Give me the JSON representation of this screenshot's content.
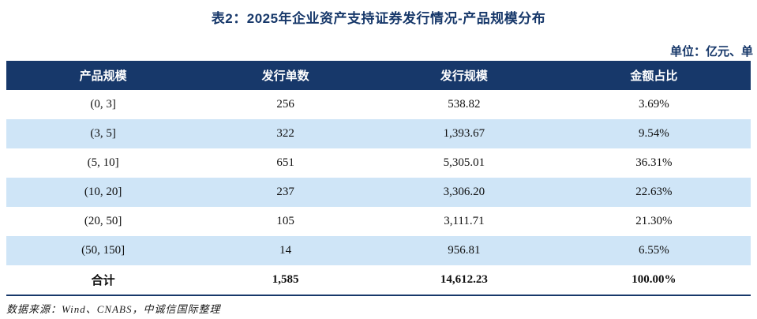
{
  "title": "表2：2025年企业资产支持证券发行情况-产品规模分布",
  "unit_label": "单位：亿元、单",
  "table": {
    "columns": [
      "产品规模",
      "发行单数",
      "发行规模",
      "金额占比"
    ],
    "rows": [
      {
        "scale": "(0, 3]",
        "count": "256",
        "volume": "538.82",
        "share": "3.69%"
      },
      {
        "scale": "(3, 5]",
        "count": "322",
        "volume": "1,393.67",
        "share": "9.54%"
      },
      {
        "scale": "(5, 10]",
        "count": "651",
        "volume": "5,305.01",
        "share": "36.31%"
      },
      {
        "scale": "(10, 20]",
        "count": "237",
        "volume": "3,306.20",
        "share": "22.63%"
      },
      {
        "scale": "(20, 50]",
        "count": "105",
        "volume": "3,111.71",
        "share": "21.30%"
      },
      {
        "scale": "(50, 150]",
        "count": "14",
        "volume": "956.81",
        "share": "6.55%"
      }
    ],
    "total_row": {
      "scale": "合计",
      "count": "1,585",
      "volume": "14,612.23",
      "share": "100.00%"
    }
  },
  "footer": {
    "source_note": "数据来源：Wind、CNABS，中诚信国际整理"
  },
  "colors": {
    "accent": "#17386a",
    "header_bg": "#17386a",
    "row_alt_bg": "#cfe5f7",
    "title_color": "#17386a"
  }
}
